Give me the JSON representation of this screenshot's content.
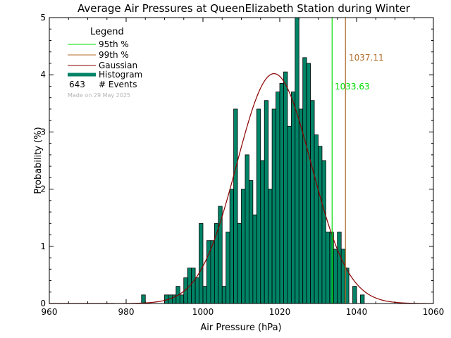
{
  "chart_data": {
    "type": "bar",
    "title": "Average Air Pressures at QueenElizabeth Station during Winter",
    "xlabel": "Air Pressure (hPa)",
    "ylabel": "Probability (%)",
    "xlim": [
      960,
      1060
    ],
    "ylim": [
      0,
      5
    ],
    "xticks": [
      960,
      980,
      1000,
      1020,
      1040,
      1060
    ],
    "yticks": [
      0,
      1,
      2,
      3,
      4,
      5
    ],
    "bin_width": 1,
    "histogram": {
      "name": "Histogram",
      "color": "#008366",
      "x": [
        984,
        990,
        991,
        992,
        993,
        994,
        995,
        996,
        997,
        998,
        999,
        1000,
        1001,
        1002,
        1003,
        1004,
        1005,
        1006,
        1007,
        1008,
        1009,
        1010,
        1011,
        1012,
        1013,
        1014,
        1015,
        1016,
        1017,
        1018,
        1019,
        1020,
        1021,
        1022,
        1023,
        1024,
        1025,
        1026,
        1027,
        1028,
        1029,
        1030,
        1031,
        1032,
        1033,
        1034,
        1035,
        1036,
        1037,
        1039,
        1041
      ],
      "values": [
        0.15,
        0.15,
        0.15,
        0.15,
        0.3,
        0.15,
        0.45,
        0.62,
        0.62,
        0.45,
        1.4,
        0.3,
        1.1,
        1.1,
        1.4,
        1.7,
        0.3,
        1.25,
        2.0,
        3.4,
        1.4,
        2.0,
        2.6,
        2.15,
        1.55,
        3.4,
        2.5,
        3.55,
        2.0,
        3.4,
        3.7,
        3.85,
        4.05,
        3.1,
        3.7,
        5.0,
        3.4,
        4.3,
        4.2,
        3.55,
        2.95,
        2.75,
        2.5,
        1.25,
        1.25,
        0.95,
        1.25,
        0.95,
        0.62,
        0.3,
        0.15
      ]
    },
    "gaussian": {
      "name": "Gaussian",
      "color": "#8b0000",
      "mean": 1018.5,
      "sd": 9.7,
      "peak": 4.02
    },
    "percentiles": [
      {
        "name": "95th %",
        "value": 1033.63,
        "label": "1033.63",
        "color": "#00dd00"
      },
      {
        "name": "99th %",
        "value": 1037.11,
        "label": "1037.11",
        "color": "#b06d2b"
      }
    ],
    "legend": {
      "title": "Legend",
      "items": [
        {
          "label": "95th %",
          "color": "#00dd00",
          "kind": "line"
        },
        {
          "label": "99th %",
          "color": "#b06d2b",
          "kind": "line"
        },
        {
          "label": "Gaussian",
          "color": "#8b0000",
          "kind": "line"
        },
        {
          "label": "Histogram",
          "color": "#008366",
          "kind": "thick"
        }
      ],
      "events_count": "643",
      "events_label": "# Events",
      "made_on": "Made on 29 May 2025"
    }
  }
}
